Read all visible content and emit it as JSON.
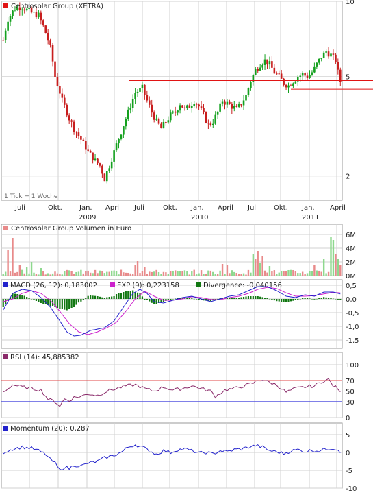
{
  "colors": {
    "grid": "#d2d2d2",
    "frame": "#9a9a9a",
    "up_candle": "#14a01e",
    "down_candle": "#c81e1e",
    "resistance": "#e11414",
    "volume_up": "#8ed88e",
    "volume_down": "#e88a8a",
    "macd": "#2222cc",
    "signal": "#cc22cc",
    "divergence": "#117711",
    "rsi": "#8a2a6a",
    "rsi_upper": "#e11414",
    "rsi_lower": "#3a3ae0",
    "momentum": "#2222cc"
  },
  "chart_data": [
    {
      "id": "price",
      "type": "candlestick",
      "title": "Centrosolar Group (XETRA)",
      "legend_icon": "red-square-icon",
      "scale": "log",
      "ylim": [
        1.6,
        10
      ],
      "yticks": [
        10,
        5,
        2
      ],
      "note": "1 Tick = 1 Woche",
      "xtick_labels": [
        "Juli",
        "Okt.",
        "Jan.",
        "April",
        "Juli",
        "Okt.",
        "Jan.",
        "April",
        "Juli",
        "Okt.",
        "Jan.",
        "April"
      ],
      "year_labels": [
        "2009",
        "2010",
        "2011"
      ],
      "resistance_levels": [
        4.82,
        4.45
      ],
      "weekly_close_keypoints": [
        [
          0,
          7.0
        ],
        [
          2,
          8.5
        ],
        [
          5,
          9.4
        ],
        [
          8,
          9.5
        ],
        [
          12,
          9.0
        ],
        [
          15,
          8.8
        ],
        [
          18,
          7.5
        ],
        [
          20,
          6.5
        ],
        [
          22,
          5.0
        ],
        [
          25,
          4.0
        ],
        [
          28,
          3.4
        ],
        [
          30,
          3.1
        ],
        [
          33,
          2.8
        ],
        [
          36,
          2.5
        ],
        [
          39,
          2.3
        ],
        [
          41,
          2.2
        ],
        [
          43,
          1.95
        ],
        [
          45,
          2.2
        ],
        [
          47,
          2.5
        ],
        [
          50,
          3.0
        ],
        [
          53,
          3.6
        ],
        [
          56,
          4.3
        ],
        [
          59,
          4.5
        ],
        [
          61,
          4.0
        ],
        [
          63,
          3.6
        ],
        [
          65,
          3.3
        ],
        [
          67,
          3.1
        ],
        [
          69,
          3.3
        ],
        [
          71,
          3.5
        ],
        [
          73,
          3.6
        ],
        [
          75,
          3.9
        ],
        [
          77,
          3.7
        ],
        [
          79,
          3.8
        ],
        [
          81,
          4.0
        ],
        [
          83,
          3.8
        ],
        [
          85,
          3.5
        ],
        [
          87,
          3.2
        ],
        [
          89,
          3.3
        ],
        [
          91,
          3.6
        ],
        [
          93,
          4.0
        ],
        [
          95,
          3.9
        ],
        [
          97,
          3.8
        ],
        [
          99,
          3.7
        ],
        [
          101,
          3.9
        ],
        [
          103,
          4.2
        ],
        [
          105,
          4.8
        ],
        [
          107,
          5.3
        ],
        [
          109,
          5.6
        ],
        [
          111,
          5.8
        ],
        [
          113,
          5.6
        ],
        [
          115,
          5.2
        ],
        [
          117,
          5.0
        ],
        [
          119,
          4.7
        ],
        [
          121,
          4.6
        ],
        [
          123,
          4.8
        ],
        [
          125,
          5.0
        ],
        [
          127,
          5.1
        ],
        [
          129,
          5.0
        ],
        [
          131,
          5.2
        ],
        [
          133,
          5.6
        ],
        [
          135,
          6.0
        ],
        [
          137,
          6.3
        ],
        [
          139,
          6.1
        ],
        [
          141,
          5.8
        ],
        [
          142,
          5.2
        ],
        [
          143,
          4.8
        ]
      ]
    },
    {
      "id": "volume",
      "type": "bar",
      "title": "Centrosolar Group Volumen in Euro",
      "legend_icon": "red-square-icon",
      "ylim": [
        0,
        6
      ],
      "yticks": [
        "6M",
        "4M",
        "2M",
        "0M"
      ],
      "unit": "Mio. Euro",
      "spikes": [
        [
          2,
          3.8
        ],
        [
          4,
          5.5
        ],
        [
          7,
          1.6
        ],
        [
          10,
          1.2
        ],
        [
          12,
          2.0
        ],
        [
          16,
          1.1
        ],
        [
          56,
          1.5
        ],
        [
          57,
          2.2
        ],
        [
          60,
          1.3
        ],
        [
          93,
          1.7
        ],
        [
          95,
          1.5
        ],
        [
          106,
          3.2
        ],
        [
          107,
          2.4
        ],
        [
          108,
          3.6
        ],
        [
          109,
          1.8
        ],
        [
          110,
          2.8
        ],
        [
          113,
          1.4
        ],
        [
          132,
          1.6
        ],
        [
          136,
          2.4
        ],
        [
          139,
          5.6
        ],
        [
          140,
          5.2
        ],
        [
          141,
          3.2
        ],
        [
          142,
          2.4
        ],
        [
          143,
          1.6
        ]
      ]
    },
    {
      "id": "macd",
      "type": "line",
      "legend": [
        {
          "label": "MACD (26, 12): 0,183002",
          "icon": "blue-square-icon"
        },
        {
          "label": "EXP (9): 0,223158",
          "icon": "magenta-square-icon"
        },
        {
          "label": "Divergence: -0,040156",
          "icon": "green-square-icon"
        }
      ],
      "ylim": [
        -1.8,
        0.7
      ],
      "yticks": [
        "0,5",
        "0,0",
        "-0,5",
        "-1,0",
        "-1,5"
      ],
      "macd_keypoints": [
        [
          0,
          -0.4
        ],
        [
          4,
          0.2
        ],
        [
          8,
          0.35
        ],
        [
          12,
          0.3
        ],
        [
          16,
          0.05
        ],
        [
          20,
          -0.3
        ],
        [
          24,
          -0.8
        ],
        [
          27,
          -1.2
        ],
        [
          30,
          -1.35
        ],
        [
          33,
          -1.32
        ],
        [
          37,
          -1.15
        ],
        [
          40,
          -1.1
        ],
        [
          43,
          -1.05
        ],
        [
          47,
          -0.8
        ],
        [
          51,
          -0.3
        ],
        [
          55,
          0.2
        ],
        [
          58,
          0.35
        ],
        [
          61,
          0.2
        ],
        [
          64,
          -0.1
        ],
        [
          68,
          -0.15
        ],
        [
          72,
          -0.05
        ],
        [
          76,
          0.05
        ],
        [
          80,
          0.1
        ],
        [
          84,
          0.0
        ],
        [
          88,
          -0.1
        ],
        [
          92,
          0.0
        ],
        [
          96,
          0.1
        ],
        [
          100,
          0.15
        ],
        [
          104,
          0.3
        ],
        [
          108,
          0.45
        ],
        [
          112,
          0.45
        ],
        [
          116,
          0.3
        ],
        [
          120,
          0.1
        ],
        [
          124,
          0.05
        ],
        [
          128,
          0.15
        ],
        [
          132,
          0.1
        ],
        [
          136,
          0.25
        ],
        [
          140,
          0.25
        ],
        [
          143,
          0.18
        ]
      ],
      "signal_keypoints": [
        [
          0,
          -0.1
        ],
        [
          4,
          0.0
        ],
        [
          8,
          0.2
        ],
        [
          12,
          0.3
        ],
        [
          16,
          0.2
        ],
        [
          20,
          -0.05
        ],
        [
          24,
          -0.45
        ],
        [
          28,
          -0.9
        ],
        [
          32,
          -1.2
        ],
        [
          36,
          -1.3
        ],
        [
          40,
          -1.2
        ],
        [
          44,
          -1.05
        ],
        [
          48,
          -0.85
        ],
        [
          52,
          -0.45
        ],
        [
          56,
          0.0
        ],
        [
          60,
          0.28
        ],
        [
          64,
          0.1
        ],
        [
          68,
          -0.05
        ],
        [
          72,
          -0.05
        ],
        [
          76,
          0.0
        ],
        [
          80,
          0.08
        ],
        [
          84,
          0.05
        ],
        [
          88,
          -0.02
        ],
        [
          92,
          -0.03
        ],
        [
          96,
          0.05
        ],
        [
          100,
          0.1
        ],
        [
          104,
          0.2
        ],
        [
          108,
          0.35
        ],
        [
          112,
          0.42
        ],
        [
          116,
          0.38
        ],
        [
          120,
          0.22
        ],
        [
          124,
          0.1
        ],
        [
          128,
          0.1
        ],
        [
          132,
          0.12
        ],
        [
          136,
          0.18
        ],
        [
          140,
          0.24
        ],
        [
          143,
          0.22
        ]
      ]
    },
    {
      "id": "rsi",
      "type": "line",
      "legend": [
        {
          "label": "RSI (14): 45,885382",
          "icon": "purple-square-icon"
        }
      ],
      "ylim": [
        0,
        100
      ],
      "yticks": [
        "100",
        "70",
        "50",
        "30",
        "0"
      ],
      "levels": [
        70,
        30
      ],
      "keypoints": [
        [
          0,
          48
        ],
        [
          4,
          62
        ],
        [
          8,
          58
        ],
        [
          12,
          55
        ],
        [
          16,
          52
        ],
        [
          19,
          35
        ],
        [
          22,
          30
        ],
        [
          24,
          22
        ],
        [
          26,
          35
        ],
        [
          28,
          32
        ],
        [
          30,
          38
        ],
        [
          33,
          40
        ],
        [
          36,
          45
        ],
        [
          40,
          42
        ],
        [
          44,
          50
        ],
        [
          48,
          55
        ],
        [
          52,
          60
        ],
        [
          56,
          62
        ],
        [
          60,
          55
        ],
        [
          64,
          50
        ],
        [
          68,
          58
        ],
        [
          72,
          52
        ],
        [
          76,
          55
        ],
        [
          80,
          60
        ],
        [
          84,
          55
        ],
        [
          88,
          50
        ],
        [
          90,
          40
        ],
        [
          94,
          52
        ],
        [
          98,
          55
        ],
        [
          102,
          60
        ],
        [
          106,
          65
        ],
        [
          108,
          70
        ],
        [
          110,
          72
        ],
        [
          112,
          68
        ],
        [
          116,
          62
        ],
        [
          120,
          48
        ],
        [
          124,
          55
        ],
        [
          128,
          58
        ],
        [
          132,
          60
        ],
        [
          136,
          70
        ],
        [
          138,
          72
        ],
        [
          140,
          60
        ],
        [
          142,
          55
        ],
        [
          143,
          46
        ]
      ]
    },
    {
      "id": "momentum",
      "type": "line",
      "legend": [
        {
          "label": "Momentum (20): 0,287",
          "icon": "blue-square-icon"
        }
      ],
      "ylim": [
        -10,
        5
      ],
      "yticks": [
        "5",
        "0",
        "-5",
        "-10"
      ],
      "keypoints": [
        [
          0,
          0
        ],
        [
          4,
          1
        ],
        [
          8,
          1.5
        ],
        [
          12,
          1.2
        ],
        [
          15,
          0.5
        ],
        [
          18,
          -0.5
        ],
        [
          20,
          -2
        ],
        [
          22,
          -3
        ],
        [
          24,
          -5
        ],
        [
          26,
          -4
        ],
        [
          28,
          -4.5
        ],
        [
          30,
          -3.5
        ],
        [
          33,
          -3.8
        ],
        [
          36,
          -3
        ],
        [
          40,
          -2.5
        ],
        [
          43,
          -1.5
        ],
        [
          46,
          -1
        ],
        [
          50,
          0
        ],
        [
          53,
          1.5
        ],
        [
          56,
          2.2
        ],
        [
          59,
          1.5
        ],
        [
          62,
          0.5
        ],
        [
          65,
          -0.5
        ],
        [
          68,
          0.5
        ],
        [
          71,
          0
        ],
        [
          74,
          0.8
        ],
        [
          77,
          1
        ],
        [
          80,
          0.5
        ],
        [
          83,
          -0.2
        ],
        [
          86,
          0
        ],
        [
          89,
          -0.4
        ],
        [
          92,
          0.5
        ],
        [
          95,
          0.2
        ],
        [
          98,
          0.8
        ],
        [
          101,
          1
        ],
        [
          104,
          1.5
        ],
        [
          107,
          2
        ],
        [
          110,
          1.5
        ],
        [
          113,
          0.5
        ],
        [
          116,
          0.2
        ],
        [
          119,
          -0.3
        ],
        [
          122,
          0.4
        ],
        [
          125,
          0.8
        ],
        [
          128,
          0.3
        ],
        [
          131,
          0.6
        ],
        [
          134,
          0.5
        ],
        [
          137,
          1
        ],
        [
          140,
          1.2
        ],
        [
          142,
          0.8
        ],
        [
          143,
          0.3
        ]
      ]
    }
  ]
}
